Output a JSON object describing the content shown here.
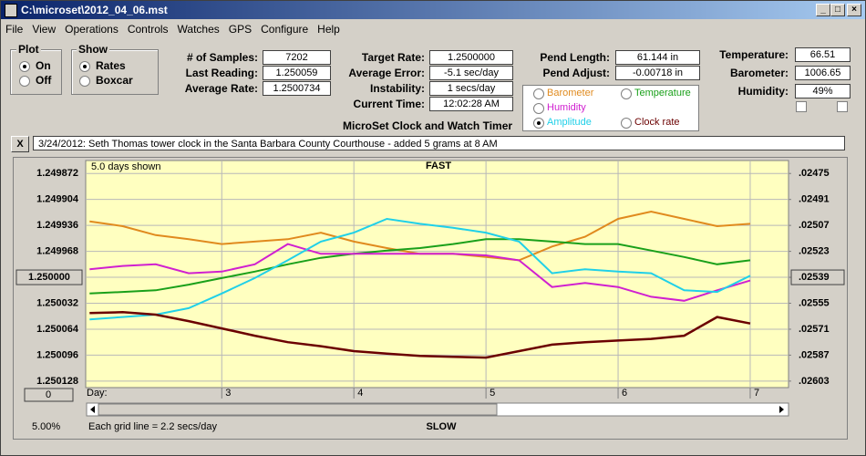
{
  "window": {
    "title": "C:\\microset\\2012_04_06.mst"
  },
  "menu": [
    "File",
    "View",
    "Operations",
    "Controls",
    "Watches",
    "GPS",
    "Configure",
    "Help"
  ],
  "plot_group": {
    "title": "Plot",
    "options": [
      "On",
      "Off"
    ]
  },
  "show_group": {
    "title": "Show",
    "options": [
      "Rates",
      "Boxcar"
    ]
  },
  "fields": [
    {
      "label": "# of Samples:",
      "value": "7202"
    },
    {
      "label": "Last Reading:",
      "value": "1.250059"
    },
    {
      "label": "Average Rate:",
      "value": "1.2500734"
    },
    {
      "label": "Target Rate:",
      "value": "1.2500000"
    },
    {
      "label": "Average Error:",
      "value": "-5.1 sec/day"
    },
    {
      "label": "Instability:",
      "value": "1 secs/day"
    },
    {
      "label": "Current Time:",
      "value": "12:02:28 AM"
    },
    {
      "label": "Pend Length:",
      "value": "61.144 in"
    },
    {
      "label": "Pend Adjust:",
      "value": "-0.00718 in"
    },
    {
      "label": "Temperature:",
      "value": "66.51"
    },
    {
      "label": "Barometer:",
      "value": "1006.65"
    },
    {
      "label": "Humidity:",
      "value": "49%"
    }
  ],
  "caption": "MicroSet Clock and Watch Timer",
  "close_button": "X",
  "note": "3/24/2012: Seth Thomas tower clock in the Santa Barbara County Courthouse - added 5 grams at 8 AM",
  "chart_data": {
    "type": "line",
    "days_shown": "5.0 days shown",
    "top_label": "FAST",
    "bottom_label": "SLOW",
    "x_label": "Day:",
    "grid_note": "Each grid line = 2.2 secs/day",
    "zoom": "5.00%",
    "offset_button": "0",
    "background": "#ffffc0",
    "grid": true,
    "x": [
      2.0,
      2.25,
      2.5,
      2.75,
      3.0,
      3.25,
      3.5,
      3.75,
      4.0,
      4.25,
      4.5,
      4.75,
      5.0,
      5.25,
      5.5,
      5.75,
      6.0,
      6.25,
      6.5,
      6.75,
      7.0
    ],
    "xlim": [
      1.97,
      7.29
    ],
    "xticks": [
      3,
      4,
      5,
      6,
      7
    ],
    "ylim": [
      1.250136,
      1.249856
    ],
    "yticks": [
      1.249872,
      1.249904,
      1.249936,
      1.249968,
      {
        "value": 1.25,
        "label": "1.250000"
      },
      1.250032,
      1.250064,
      1.250096,
      1.250128
    ],
    "y2lim": [
      0.02607,
      0.02467
    ],
    "y2ticks": [
      {
        "value": 0.02475,
        "label": ".02475"
      },
      {
        "value": 0.02491,
        "label": ".02491"
      },
      {
        "value": 0.02507,
        "label": ".02507"
      },
      {
        "value": 0.02523,
        "label": ".02523"
      },
      {
        "value": 0.02539,
        "label": ".02539"
      },
      {
        "value": 0.02555,
        "label": ".02555"
      },
      {
        "value": 0.02571,
        "label": ".02571"
      },
      {
        "value": 0.02587,
        "label": ".02587"
      },
      {
        "value": 0.02603,
        "label": ".02603"
      }
    ],
    "series": [
      {
        "name": "Barometer",
        "color": "#e08a1e",
        "values": [
          1.249931,
          1.249937,
          1.249948,
          1.249953,
          1.249959,
          1.249956,
          1.249953,
          1.249945,
          1.249956,
          1.249964,
          1.249971,
          1.249971,
          1.249975,
          1.249979,
          1.249962,
          1.24995,
          1.249928,
          1.249919,
          1.249928,
          1.249937,
          1.249934
        ]
      },
      {
        "name": "Temperature",
        "color": "#1aa01a",
        "values": [
          1.25002,
          1.250018,
          1.250016,
          1.250009,
          1.250001,
          1.249993,
          1.249984,
          1.249976,
          1.249971,
          1.249967,
          1.249964,
          1.249959,
          1.249953,
          1.249953,
          1.249956,
          1.249959,
          1.249959,
          1.249967,
          1.249975,
          1.249984,
          1.249979
        ]
      },
      {
        "name": "Humidity",
        "color": "#d020d0",
        "values": [
          1.24999,
          1.249986,
          1.249984,
          1.249995,
          1.249993,
          1.249984,
          1.249959,
          1.249971,
          1.249971,
          1.249971,
          1.249971,
          1.249971,
          1.249973,
          1.249979,
          1.250012,
          1.250007,
          1.250012,
          1.250024,
          1.250029,
          1.250016,
          1.250004
        ]
      },
      {
        "name": "Amplitude",
        "color": "#20d0e8",
        "values": [
          1.250052,
          1.250049,
          1.250046,
          1.250038,
          1.25002,
          1.250001,
          1.249979,
          1.249956,
          1.249945,
          1.249928,
          1.249934,
          1.249939,
          1.249945,
          1.249956,
          1.249995,
          1.24999,
          1.249993,
          1.249995,
          1.250016,
          1.250018,
          1.249998
        ]
      },
      {
        "name": "Clock rate",
        "color": "#6b0000",
        "values": [
          1.250044,
          1.250043,
          1.250046,
          1.250054,
          1.250063,
          1.250072,
          1.25008,
          1.250085,
          1.250091,
          1.250094,
          1.250097,
          1.250098,
          1.250099,
          1.250091,
          1.250083,
          1.25008,
          1.250078,
          1.250076,
          1.250072,
          1.250049,
          1.250057
        ]
      }
    ]
  }
}
